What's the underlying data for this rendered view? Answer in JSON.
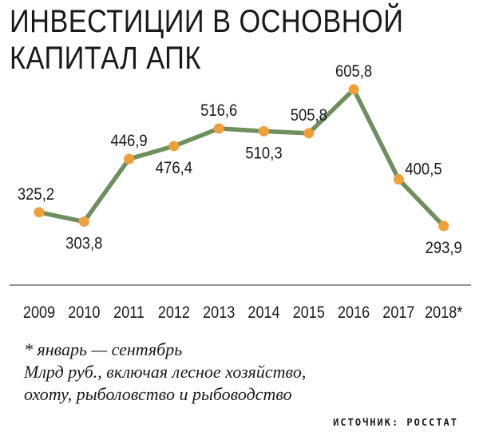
{
  "title": {
    "line1": "ИНВЕСТИЦИИ В ОСНОВНОЙ",
    "line2": "КАПИТАЛ АПК"
  },
  "chart_data": {
    "type": "line",
    "categories": [
      "2009",
      "2010",
      "2011",
      "2012",
      "2013",
      "2014",
      "2015",
      "2016",
      "2017",
      "2018*"
    ],
    "values": [
      325.2,
      303.8,
      446.9,
      476.4,
      516.6,
      510.3,
      505.8,
      605.8,
      400.5,
      293.9
    ],
    "value_labels": [
      "325,2",
      "303,8",
      "446,9",
      "476,4",
      "516,6",
      "510,3",
      "505,8",
      "605,8",
      "400,5",
      "293,9"
    ],
    "label_positions": [
      "above",
      "below",
      "above",
      "below",
      "above",
      "below",
      "above",
      "above",
      "right",
      "below"
    ],
    "xlabel": "",
    "ylabel": "",
    "ylim": [
      250,
      650
    ],
    "grid": false,
    "line_color": "#6f8f5e",
    "marker_color": "#f0a038",
    "axis_color": "#555555"
  },
  "footnote": {
    "line1": "* январь — сентябрь",
    "line2": "Млрд руб., включая лесное хозяйство,",
    "line3": "охоту, рыболовство и рыбоводство"
  },
  "source": "ИСТОЧНИК: РОССТАТ"
}
